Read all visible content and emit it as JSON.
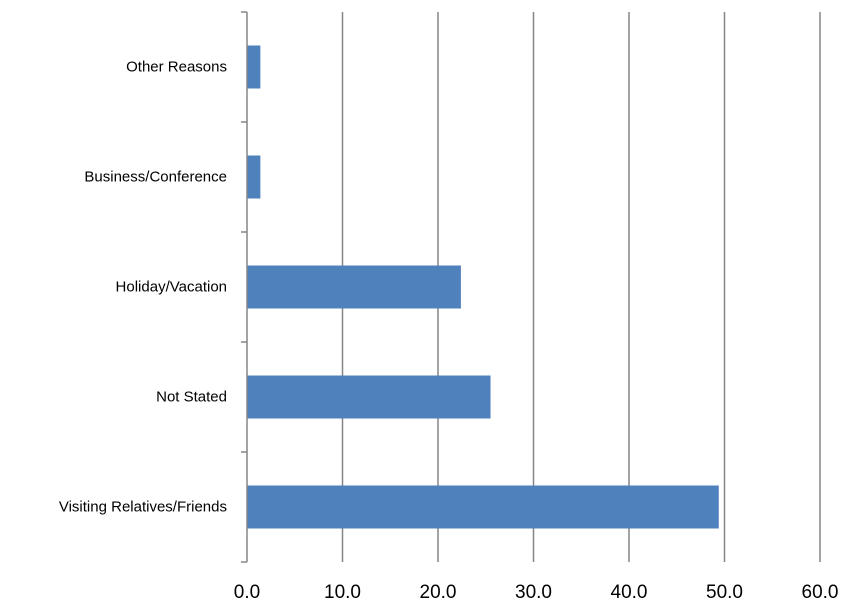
{
  "chart_data": {
    "type": "bar",
    "orientation": "horizontal",
    "title": "",
    "xlabel": "",
    "ylabel": "",
    "categories": [
      "Visiting Relatives/Friends",
      "Not Stated",
      "Holiday/Vacation",
      "Business/Conference",
      "Other Reasons"
    ],
    "values": [
      49.4,
      25.5,
      22.4,
      1.4,
      1.4
    ],
    "xlim": [
      0,
      60
    ],
    "xticks": [
      0,
      10,
      20,
      30,
      40,
      50,
      60
    ],
    "xtick_labels": [
      "0.0",
      "10.0",
      "20.0",
      "30.0",
      "40.0",
      "50.0",
      "60.0"
    ],
    "grid": "vertical",
    "legend": "none",
    "bar_color": "#4F81BD",
    "grid_color": "#868686"
  }
}
